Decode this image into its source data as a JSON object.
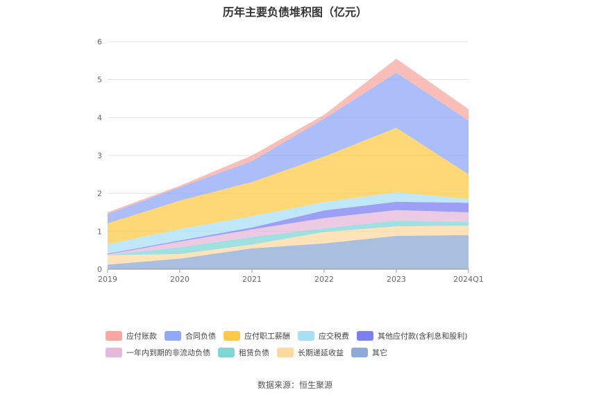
{
  "chart_data": {
    "type": "area",
    "title": "历年主要负债堆积图（亿元）",
    "categories": [
      "2019",
      "2020",
      "2021",
      "2022",
      "2023",
      "2024Q1"
    ],
    "ylim": [
      0,
      6
    ],
    "yticks": [
      0,
      1,
      2,
      3,
      4,
      5,
      6
    ],
    "stacked": true,
    "grid": true,
    "legend_position": "bottom",
    "series": [
      {
        "name": "其它",
        "color": "#8eaad6",
        "values": [
          0.12,
          0.28,
          0.55,
          0.68,
          0.88,
          0.9
        ]
      },
      {
        "name": "长期递延收益",
        "color": "#fdd9a0",
        "values": [
          0.25,
          0.12,
          0.1,
          0.3,
          0.25,
          0.25
        ]
      },
      {
        "name": "租赁负债",
        "color": "#80d5d6",
        "values": [
          0.0,
          0.18,
          0.2,
          0.1,
          0.15,
          0.1
        ]
      },
      {
        "name": "一年内到期的非流动负债",
        "color": "#e6b8da",
        "values": [
          0.02,
          0.15,
          0.2,
          0.27,
          0.28,
          0.25
        ]
      },
      {
        "name": "其他应付款(含利息和股利)",
        "color": "#7b7ff0",
        "values": [
          0.02,
          0.03,
          0.05,
          0.2,
          0.22,
          0.25
        ]
      },
      {
        "name": "应交税费",
        "color": "#a9dff5",
        "values": [
          0.25,
          0.3,
          0.3,
          0.22,
          0.25,
          0.1
        ]
      },
      {
        "name": "应付职工薪酬",
        "color": "#fdc94a",
        "values": [
          0.55,
          0.75,
          0.9,
          1.2,
          1.7,
          0.65
        ]
      },
      {
        "name": "合同负债",
        "color": "#8fa8f8",
        "values": [
          0.25,
          0.35,
          0.55,
          1.0,
          1.45,
          1.42
        ]
      },
      {
        "name": "应付账款",
        "color": "#f8a8a0",
        "values": [
          0.04,
          0.04,
          0.15,
          0.1,
          0.37,
          0.3
        ]
      }
    ]
  },
  "legend_order": [
    [
      "应付账款",
      "合同负债",
      "应付职工薪酬",
      "应交税费",
      "其他应付款(含利息和股利)"
    ],
    [
      "一年内到期的非流动负债",
      "租赁负债",
      "长期递延收益",
      "其它"
    ]
  ],
  "source": "数据来源：恒生聚源"
}
